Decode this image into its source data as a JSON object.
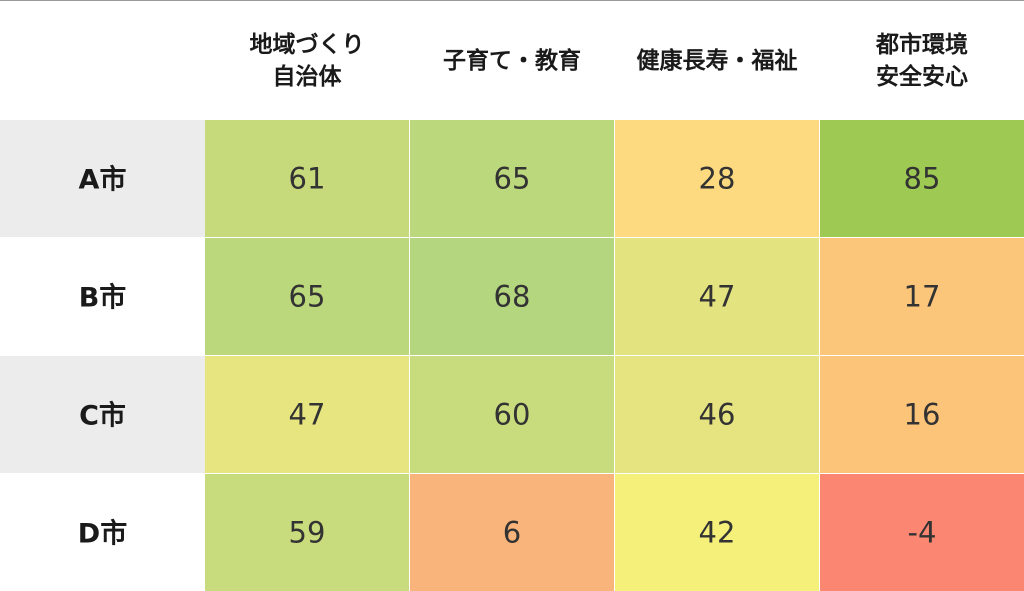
{
  "chart_data": {
    "type": "heatmap",
    "columns": [
      {
        "lines": [
          "地域づくり",
          "自治体"
        ]
      },
      {
        "lines": [
          "子育て・教育"
        ]
      },
      {
        "lines": [
          "健康長寿・福祉"
        ]
      },
      {
        "lines": [
          "都市環境",
          "安全安心"
        ]
      }
    ],
    "rows": [
      "A市",
      "B市",
      "C市",
      "D市"
    ],
    "values": [
      [
        61,
        65,
        28,
        85
      ],
      [
        65,
        68,
        47,
        17
      ],
      [
        47,
        60,
        46,
        16
      ],
      [
        59,
        6,
        42,
        -4
      ]
    ],
    "row_label_backgrounds": [
      "#ececec",
      "#ffffff",
      "#ececec",
      "#ffffff"
    ],
    "cell_colors": [
      [
        "#c6da7c",
        "#bcd87c",
        "#fdd97f",
        "#9ec952"
      ],
      [
        "#bcd87c",
        "#b4d67e",
        "#e3e380",
        "#fbc67a"
      ],
      [
        "#e7e57f",
        "#c9dc7d",
        "#e6e480",
        "#fbc479"
      ],
      [
        "#c9dc7d",
        "#f8b47a",
        "#f5f079",
        "#fb8772"
      ]
    ],
    "top_border_color": "#999999"
  }
}
